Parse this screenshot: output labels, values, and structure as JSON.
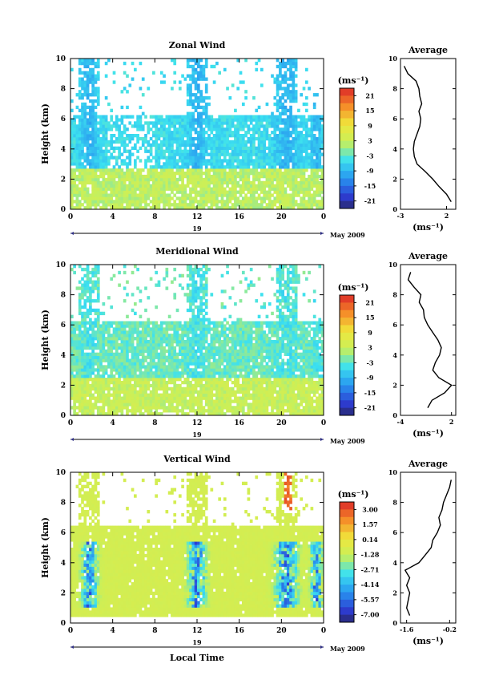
{
  "chart_data": [
    {
      "type": "heatmap",
      "title": "Zonal Wind",
      "xlabel": "",
      "ylabel": "Height (km)",
      "xlim": [
        0,
        24
      ],
      "ylim": [
        0,
        10
      ],
      "x_ticks": [
        "0",
        "4",
        "8",
        "12",
        "16",
        "20",
        "0"
      ],
      "y_ticks": [
        "0",
        "2",
        "4",
        "6",
        "8",
        "10"
      ],
      "date_day": "19",
      "date_label": "May 2009",
      "colorbar": {
        "unit": "(ms⁻¹)",
        "ticks": [
          "21",
          "15",
          "9",
          "3",
          "-3",
          "-9",
          "-15",
          "-21"
        ],
        "range": [
          -24,
          24
        ]
      },
      "profile": {
        "title": "Average",
        "xlabel": "(ms⁻¹)",
        "x_ticks": [
          "-3",
          "2"
        ],
        "xlim": [
          -3,
          3
        ],
        "y_ticks": [
          "0",
          "2",
          "4",
          "6",
          "8",
          "10"
        ],
        "height": [
          0.5,
          1.0,
          1.5,
          2.0,
          2.5,
          3.0,
          3.5,
          4.0,
          4.5,
          5.0,
          5.5,
          6.0,
          6.5,
          7.0,
          7.5,
          8.0,
          8.5,
          9.0,
          9.5
        ],
        "value": [
          2.5,
          2.0,
          1.2,
          0.5,
          -0.3,
          -1.2,
          -1.5,
          -1.6,
          -1.5,
          -1.2,
          -0.9,
          -0.8,
          -1.0,
          -0.7,
          -0.9,
          -1.0,
          -1.3,
          -2.2,
          -2.6
        ]
      }
    },
    {
      "type": "heatmap",
      "title": "Meridional Wind",
      "xlabel": "",
      "ylabel": "Height (km)",
      "xlim": [
        0,
        24
      ],
      "ylim": [
        0,
        10
      ],
      "x_ticks": [
        "0",
        "4",
        "8",
        "12",
        "16",
        "20",
        "0"
      ],
      "y_ticks": [
        "0",
        "2",
        "4",
        "6",
        "8",
        "10"
      ],
      "date_day": "19",
      "date_label": "May 2009",
      "colorbar": {
        "unit": "(ms⁻¹)",
        "ticks": [
          "21",
          "15",
          "9",
          "3",
          "-3",
          "-9",
          "-15",
          "-21"
        ],
        "range": [
          -24,
          24
        ]
      },
      "profile": {
        "title": "Average",
        "xlabel": "(ms⁻¹)",
        "x_ticks": [
          "-4",
          "2"
        ],
        "xlim": [
          -4,
          2.5
        ],
        "y_ticks": [
          "0",
          "2",
          "4",
          "6",
          "8",
          "10"
        ],
        "height": [
          0.5,
          1.0,
          1.5,
          2.0,
          2.5,
          3.0,
          3.5,
          4.0,
          4.5,
          5.0,
          5.5,
          6.0,
          6.5,
          7.0,
          7.5,
          8.0,
          8.5,
          9.0,
          9.5
        ],
        "value": [
          -0.8,
          -0.3,
          1.2,
          2.0,
          0.5,
          -0.2,
          0.1,
          0.6,
          0.8,
          0.4,
          -0.2,
          -0.8,
          -1.2,
          -1.3,
          -1.8,
          -1.6,
          -2.4,
          -3.1,
          -2.8
        ]
      }
    },
    {
      "type": "heatmap",
      "title": "Vertical Wind",
      "xlabel": "Local Time",
      "ylabel": "Height (km)",
      "xlim": [
        0,
        24
      ],
      "ylim": [
        0,
        10
      ],
      "x_ticks": [
        "0",
        "4",
        "8",
        "12",
        "16",
        "20",
        "0"
      ],
      "y_ticks": [
        "0",
        "2",
        "4",
        "6",
        "8",
        "10"
      ],
      "date_day": "19",
      "date_label": "May 2009",
      "colorbar": {
        "unit": "(ms⁻¹)",
        "ticks": [
          "3.00",
          "1.57",
          "0.14",
          "-1.28",
          "-2.71",
          "-4.14",
          "-5.57",
          "-7.00"
        ],
        "range": [
          -7.7,
          3.7
        ]
      },
      "profile": {
        "title": "Average",
        "xlabel": "(ms⁻¹)",
        "x_ticks": [
          "-1.6",
          "-0.2"
        ],
        "xlim": [
          -1.8,
          0.0
        ],
        "y_ticks": [
          "0",
          "2",
          "4",
          "6",
          "8",
          "10"
        ],
        "height": [
          0.5,
          1.0,
          1.5,
          2.0,
          2.5,
          3.0,
          3.5,
          4.0,
          4.5,
          5.0,
          5.5,
          6.0,
          6.5,
          7.0,
          7.5,
          8.0,
          8.5,
          9.0,
          9.5
        ],
        "value": [
          -1.5,
          -1.6,
          -1.55,
          -1.5,
          -1.6,
          -1.5,
          -1.65,
          -1.2,
          -1.0,
          -0.8,
          -0.75,
          -0.6,
          -0.5,
          -0.55,
          -0.45,
          -0.4,
          -0.3,
          -0.2,
          -0.15
        ]
      }
    }
  ]
}
